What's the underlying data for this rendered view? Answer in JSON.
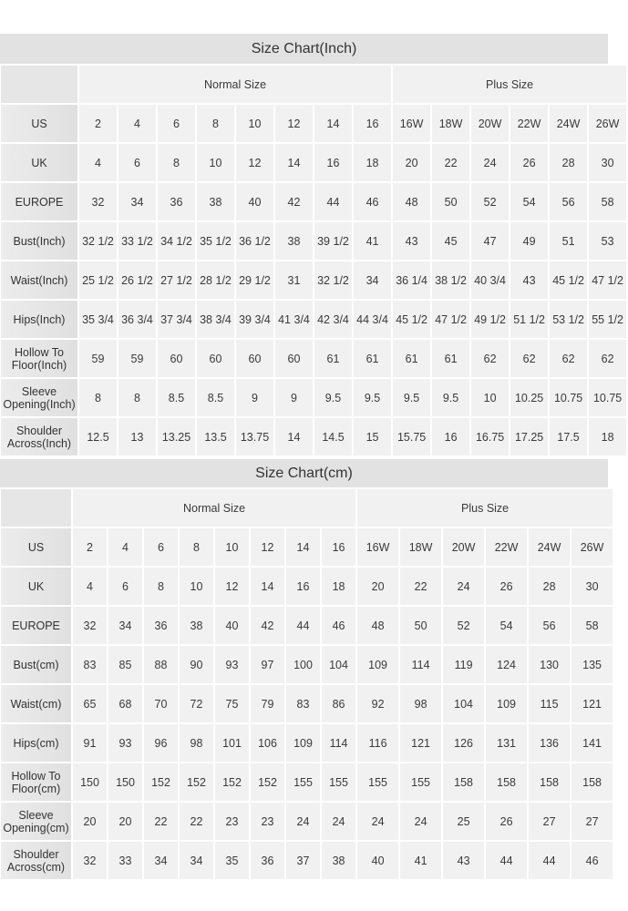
{
  "tables": [
    {
      "title": "Size Chart(Inch)",
      "groups": [
        "Normal Size",
        "Plus Size"
      ],
      "rows": [
        {
          "label": "US",
          "values": [
            "2",
            "4",
            "6",
            "8",
            "10",
            "12",
            "14",
            "16",
            "16W",
            "18W",
            "20W",
            "22W",
            "24W",
            "26W"
          ]
        },
        {
          "label": "UK",
          "values": [
            "4",
            "6",
            "8",
            "10",
            "12",
            "14",
            "16",
            "18",
            "20",
            "22",
            "24",
            "26",
            "28",
            "30"
          ]
        },
        {
          "label": "EUROPE",
          "values": [
            "32",
            "34",
            "36",
            "38",
            "40",
            "42",
            "44",
            "46",
            "48",
            "50",
            "52",
            "54",
            "56",
            "58"
          ]
        },
        {
          "label": "Bust(Inch)",
          "values": [
            "32 1/2",
            "33 1/2",
            "34 1/2",
            "35 1/2",
            "36 1/2",
            "38",
            "39 1/2",
            "41",
            "43",
            "45",
            "47",
            "49",
            "51",
            "53"
          ]
        },
        {
          "label": "Waist(Inch)",
          "values": [
            "25 1/2",
            "26 1/2",
            "27 1/2",
            "28 1/2",
            "29 1/2",
            "31",
            "32 1/2",
            "34",
            "36 1/4",
            "38 1/2",
            "40 3/4",
            "43",
            "45 1/2",
            "47 1/2"
          ]
        },
        {
          "label": "Hips(Inch)",
          "values": [
            "35 3/4",
            "36 3/4",
            "37 3/4",
            "38 3/4",
            "39 3/4",
            "41 3/4",
            "42 3/4",
            "44 3/4",
            "45 1/2",
            "47 1/2",
            "49 1/2",
            "51 1/2",
            "53 1/2",
            "55 1/2"
          ]
        },
        {
          "label": "Hollow To Floor(Inch)",
          "values": [
            "59",
            "59",
            "60",
            "60",
            "60",
            "60",
            "61",
            "61",
            "61",
            "61",
            "62",
            "62",
            "62",
            "62"
          ]
        },
        {
          "label": "Sleeve Opening(Inch)",
          "values": [
            "8",
            "8",
            "8.5",
            "8.5",
            "9",
            "9",
            "9.5",
            "9.5",
            "9.5",
            "9.5",
            "10",
            "10.25",
            "10.75",
            "10.75"
          ]
        },
        {
          "label": "Shoulder Across(Inch)",
          "values": [
            "12.5",
            "13",
            "13.25",
            "13.5",
            "13.75",
            "14",
            "14.5",
            "15",
            "15.75",
            "16",
            "16.75",
            "17.25",
            "17.5",
            "18"
          ]
        }
      ]
    },
    {
      "title": "Size Chart(cm)",
      "groups": [
        "Normal Size",
        "Plus Size"
      ],
      "rows": [
        {
          "label": "US",
          "values": [
            "2",
            "4",
            "6",
            "8",
            "10",
            "12",
            "14",
            "16",
            "16W",
            "18W",
            "20W",
            "22W",
            "24W",
            "26W"
          ]
        },
        {
          "label": "UK",
          "values": [
            "4",
            "6",
            "8",
            "10",
            "12",
            "14",
            "16",
            "18",
            "20",
            "22",
            "24",
            "26",
            "28",
            "30"
          ]
        },
        {
          "label": "EUROPE",
          "values": [
            "32",
            "34",
            "36",
            "38",
            "40",
            "42",
            "44",
            "46",
            "48",
            "50",
            "52",
            "54",
            "56",
            "58"
          ]
        },
        {
          "label": "Bust(cm)",
          "values": [
            "83",
            "85",
            "88",
            "90",
            "93",
            "97",
            "100",
            "104",
            "109",
            "114",
            "119",
            "124",
            "130",
            "135"
          ]
        },
        {
          "label": "Waist(cm)",
          "values": [
            "65",
            "68",
            "70",
            "72",
            "75",
            "79",
            "83",
            "86",
            "92",
            "98",
            "104",
            "109",
            "115",
            "121"
          ]
        },
        {
          "label": "Hips(cm)",
          "values": [
            "91",
            "93",
            "96",
            "98",
            "101",
            "106",
            "109",
            "114",
            "116",
            "121",
            "126",
            "131",
            "136",
            "141"
          ]
        },
        {
          "label": "Hollow To Floor(cm)",
          "values": [
            "150",
            "150",
            "152",
            "152",
            "152",
            "152",
            "155",
            "155",
            "155",
            "155",
            "158",
            "158",
            "158",
            "158"
          ]
        },
        {
          "label": "Sleeve Opening(cm)",
          "values": [
            "20",
            "20",
            "22",
            "22",
            "23",
            "23",
            "24",
            "24",
            "24",
            "24",
            "25",
            "26",
            "27",
            "27"
          ]
        },
        {
          "label": "Shoulder Across(cm)",
          "values": [
            "32",
            "33",
            "34",
            "34",
            "35",
            "36",
            "37",
            "38",
            "40",
            "41",
            "43",
            "44",
            "44",
            "46"
          ]
        }
      ]
    }
  ]
}
